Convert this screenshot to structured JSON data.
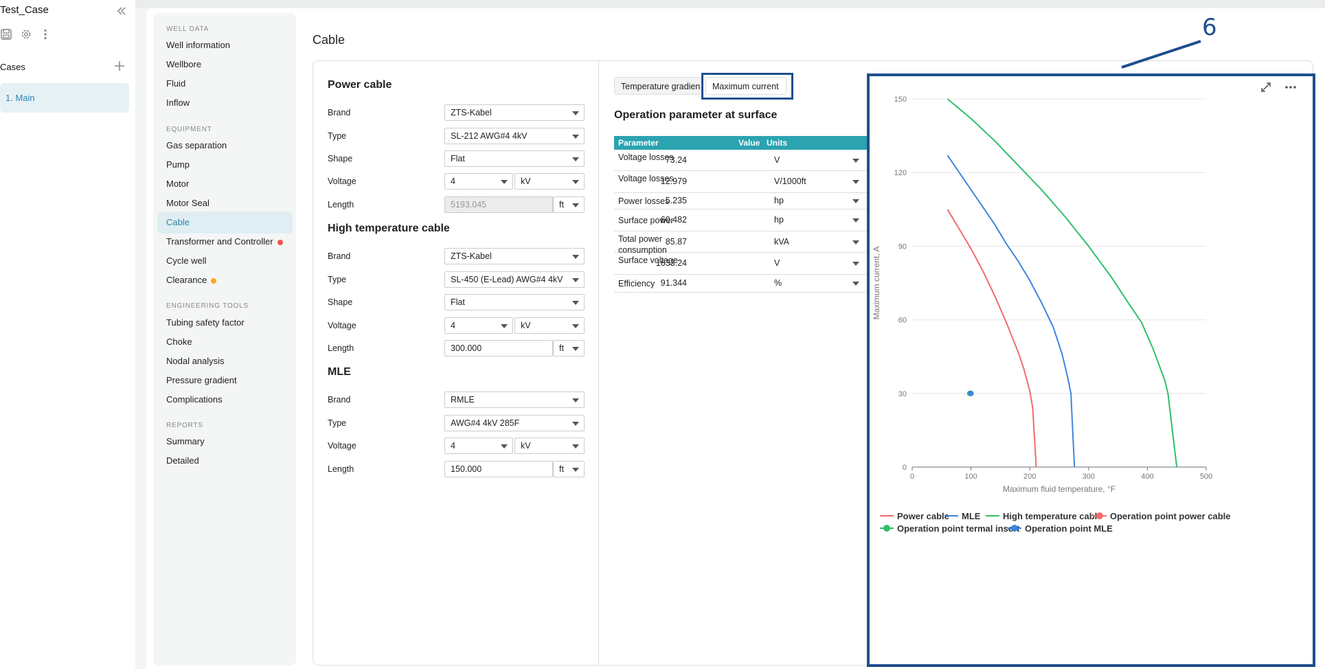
{
  "app": {
    "case_title": "Test_Case",
    "cases_label": "Cases",
    "case_items": [
      "1. Main"
    ]
  },
  "nav": {
    "sections": [
      {
        "title": "WELL DATA",
        "items": [
          {
            "label": "Well information"
          },
          {
            "label": "Wellbore"
          },
          {
            "label": "Fluid"
          },
          {
            "label": "Inflow"
          }
        ]
      },
      {
        "title": "EQUIPMENT",
        "items": [
          {
            "label": "Gas separation"
          },
          {
            "label": "Pump"
          },
          {
            "label": "Motor"
          },
          {
            "label": "Motor Seal"
          },
          {
            "label": "Cable",
            "active": true
          },
          {
            "label": "Transformer and Controller",
            "dot": "#ef5350"
          },
          {
            "label": "Cycle well"
          },
          {
            "label": "Clearance",
            "dot": "#ffa726"
          }
        ]
      },
      {
        "title": "ENGINEERING TOOLS",
        "items": [
          {
            "label": "Tubing safety factor"
          },
          {
            "label": "Choke"
          },
          {
            "label": "Nodal analysis"
          },
          {
            "label": "Pressure gradient"
          },
          {
            "label": "Complications"
          }
        ]
      },
      {
        "title": "REPORTS",
        "items": [
          {
            "label": "Summary"
          },
          {
            "label": "Detailed"
          }
        ]
      }
    ]
  },
  "page": {
    "title": "Cable"
  },
  "form": {
    "power_cable": {
      "title": "Power cable",
      "brand_label": "Brand",
      "brand": "ZTS-Kabel",
      "type_label": "Type",
      "type": "SL-212 AWG#4 4kV",
      "shape_label": "Shape",
      "shape": "Flat",
      "voltage_label": "Voltage",
      "voltage": "4",
      "voltage_unit": "kV",
      "length_label": "Length",
      "length": "5193.045",
      "length_unit": "ft"
    },
    "high_temp_cable": {
      "title": "High temperature cable",
      "brand_label": "Brand",
      "brand": "ZTS-Kabel",
      "type_label": "Type",
      "type": "SL-450 (E-Lead) AWG#4 4kV",
      "shape_label": "Shape",
      "shape": "Flat",
      "voltage_label": "Voltage",
      "voltage": "4",
      "voltage_unit": "kV",
      "length_label": "Length",
      "length": "300.000",
      "length_unit": "ft"
    },
    "mle": {
      "title": "MLE",
      "brand_label": "Brand",
      "brand": "RMLE",
      "type_label": "Type",
      "type": "AWG#4 4kV 285F",
      "voltage_label": "Voltage",
      "voltage": "4",
      "voltage_unit": "kV",
      "length_label": "Length",
      "length": "150.000",
      "length_unit": "ft"
    }
  },
  "results": {
    "tabs": [
      "Temperature gradient",
      "Maximum current"
    ],
    "selected_tab": "Maximum current",
    "annotation": "6",
    "ops_title": "Operation parameter at surface",
    "table_headers": [
      "Parameter",
      "Value",
      "Units"
    ],
    "rows": [
      {
        "parameter": "Voltage losses",
        "value": "73.24",
        "unit": "V"
      },
      {
        "parameter": "Voltage losses",
        "value": "12.979",
        "unit": "V/1000ft"
      },
      {
        "parameter": "Power losses",
        "value": "5.235",
        "unit": "hp"
      },
      {
        "parameter": "Surface power",
        "value": "60.482",
        "unit": "hp"
      },
      {
        "parameter": "Total power consumption",
        "value": "85.87",
        "unit": "kVA"
      },
      {
        "parameter": "Surface voltage",
        "value": "1633.24",
        "unit": "V"
      },
      {
        "parameter": "Efficiency",
        "value": "91.344",
        "unit": "%"
      }
    ]
  },
  "chart_data": {
    "type": "line",
    "title": "",
    "xlabel": "Maximum fluid temperature, °F",
    "ylabel": "Maximum current, A",
    "xlim": [
      0,
      500
    ],
    "ylim": [
      0,
      150
    ],
    "x_ticks": [
      "0",
      "100",
      "200",
      "300",
      "400",
      "500"
    ],
    "y_ticks": [
      "0",
      "30",
      "60",
      "90",
      "120",
      "150"
    ],
    "grid": true,
    "legend_position": "bottom",
    "series": [
      {
        "name": "Power cable",
        "color": "#f26b6b",
        "kind": "line",
        "points": [
          [
            60,
            105
          ],
          [
            80,
            97
          ],
          [
            100,
            89
          ],
          [
            120,
            80
          ],
          [
            140,
            70
          ],
          [
            160,
            59
          ],
          [
            180,
            47
          ],
          [
            190,
            40
          ],
          [
            200,
            31
          ],
          [
            205,
            24
          ],
          [
            208,
            12
          ],
          [
            211,
            0
          ]
        ]
      },
      {
        "name": "MLE",
        "color": "#3d85e0",
        "kind": "line",
        "points": [
          [
            60,
            127
          ],
          [
            80,
            120
          ],
          [
            100,
            113
          ],
          [
            120,
            106
          ],
          [
            140,
            99
          ],
          [
            160,
            91
          ],
          [
            180,
            84
          ],
          [
            200,
            76
          ],
          [
            220,
            67
          ],
          [
            240,
            57
          ],
          [
            255,
            46
          ],
          [
            265,
            36
          ],
          [
            270,
            30
          ],
          [
            272,
            20
          ],
          [
            274,
            10
          ],
          [
            276,
            0
          ]
        ]
      },
      {
        "name": "High temperature cable",
        "color": "#2fbf6b",
        "kind": "line",
        "points": [
          [
            60,
            150
          ],
          [
            100,
            142
          ],
          [
            140,
            133
          ],
          [
            180,
            123
          ],
          [
            220,
            113
          ],
          [
            260,
            102
          ],
          [
            300,
            90
          ],
          [
            340,
            77
          ],
          [
            370,
            66
          ],
          [
            390,
            59
          ],
          [
            410,
            48
          ],
          [
            430,
            35
          ],
          [
            435,
            30
          ],
          [
            440,
            20
          ],
          [
            445,
            10
          ],
          [
            450,
            0
          ]
        ]
      },
      {
        "name": "Operation point power cable",
        "color": "#f26b6b",
        "kind": "point",
        "points": [
          [
            98,
            30
          ]
        ]
      },
      {
        "name": "Operation point termal insert",
        "color": "#2fbf6b",
        "kind": "point",
        "points": [
          [
            98,
            30
          ]
        ]
      },
      {
        "name": "Operation point MLE",
        "color": "#3d85e0",
        "kind": "point",
        "points": [
          [
            100,
            30
          ]
        ]
      }
    ]
  }
}
